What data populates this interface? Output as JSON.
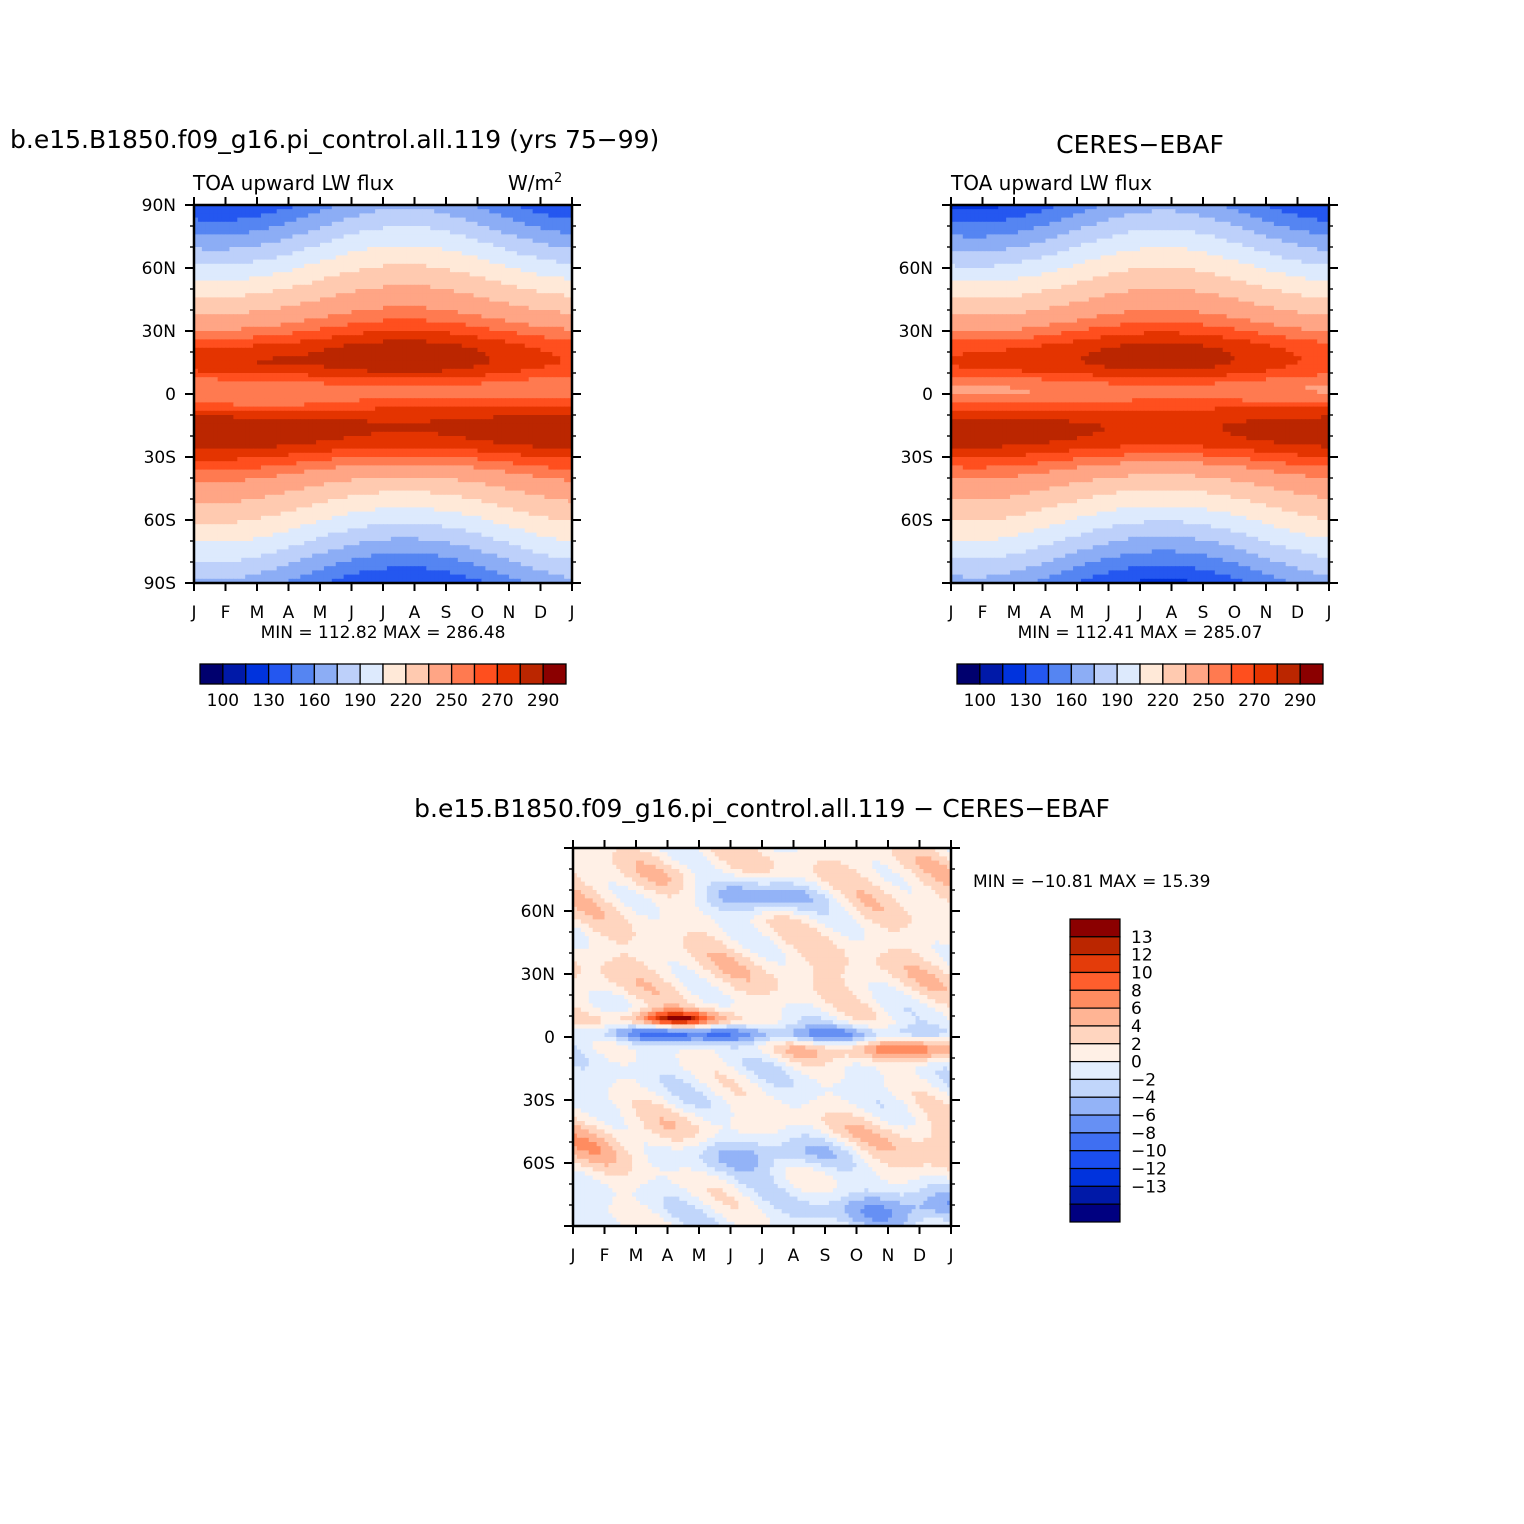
{
  "chart_data": [
    {
      "type": "heatmap",
      "id": "model",
      "title": "b.e15.B1850.f09_g16.pi_control.all.119 (yrs 75−99)",
      "left_string": "TOA upward LW flux",
      "right_string": "W/m",
      "units_exp": "2",
      "x_tick_labels": [
        "J",
        "F",
        "M",
        "A",
        "M",
        "J",
        "J",
        "A",
        "S",
        "O",
        "N",
        "D",
        "J"
      ],
      "y_tick_labels": [
        "90S",
        "60S",
        "30S",
        "0",
        "30N",
        "60N",
        "90N"
      ],
      "y_tick_values": [
        -90,
        -60,
        -30,
        0,
        30,
        60,
        90
      ],
      "xlim": [
        0,
        12
      ],
      "ylim": [
        -90,
        90
      ],
      "min_max_text": "MIN = 112.82 MAX = 286.48",
      "min": 112.82,
      "max": 286.48,
      "colorbar_labels": [
        "100",
        "130",
        "160",
        "190",
        "220",
        "250",
        "270",
        "290"
      ]
    },
    {
      "type": "heatmap",
      "id": "obs",
      "title": "CERES−EBAF",
      "left_string": "TOA upward LW flux",
      "x_tick_labels": [
        "J",
        "F",
        "M",
        "A",
        "M",
        "J",
        "J",
        "A",
        "S",
        "O",
        "N",
        "D",
        "J"
      ],
      "y_tick_labels": [
        "60S",
        "30S",
        "0",
        "30N",
        "60N"
      ],
      "y_tick_values": [
        -60,
        -30,
        0,
        30,
        60
      ],
      "xlim": [
        0,
        12
      ],
      "ylim": [
        -90,
        90
      ],
      "min_max_text": "MIN = 112.41 MAX = 285.07",
      "min": 112.41,
      "max": 285.07,
      "colorbar_labels": [
        "100",
        "130",
        "160",
        "190",
        "220",
        "250",
        "270",
        "290"
      ]
    },
    {
      "type": "heatmap",
      "id": "diff",
      "title": "b.e15.B1850.f09_g16.pi_control.all.119 − CERES−EBAF",
      "x_tick_labels": [
        "J",
        "F",
        "M",
        "A",
        "M",
        "J",
        "J",
        "A",
        "S",
        "O",
        "N",
        "D",
        "J"
      ],
      "y_tick_labels": [
        "60S",
        "30S",
        "0",
        "30N",
        "60N"
      ],
      "y_tick_values": [
        -60,
        -30,
        0,
        30,
        60
      ],
      "xlim": [
        0,
        12
      ],
      "ylim": [
        -90,
        90
      ],
      "min_max_text": "MIN = −10.81 MAX =   15.39",
      "min": -10.81,
      "max": 15.39,
      "colorbar_labels": [
        "13",
        "12",
        "10",
        "8",
        "6",
        "4",
        "2",
        "0",
        "−2",
        "−4",
        "−6",
        "−8",
        "−10",
        "−12",
        "−13"
      ]
    }
  ],
  "colors": {
    "abs_palette": [
      "#00006e",
      "#0019a8",
      "#0033dd",
      "#2457f0",
      "#5585f2",
      "#8cadf5",
      "#bdd0fa",
      "#ddeafd",
      "#ffe9d8",
      "#ffcab0",
      "#ffa585",
      "#ff7a50",
      "#ff4f1e",
      "#e43400",
      "#bb2600",
      "#8b0000"
    ],
    "diff_palette": [
      "#000080",
      "#0019a8",
      "#0033dd",
      "#1a4ef0",
      "#3f6ff2",
      "#6690f4",
      "#93b3f7",
      "#c1d6fb",
      "#e3eefe",
      "#fff0e6",
      "#ffd5bf",
      "#ffb494",
      "#ff8c60",
      "#ff5e2d",
      "#e43c0a",
      "#bb2600",
      "#8b0000"
    ]
  }
}
